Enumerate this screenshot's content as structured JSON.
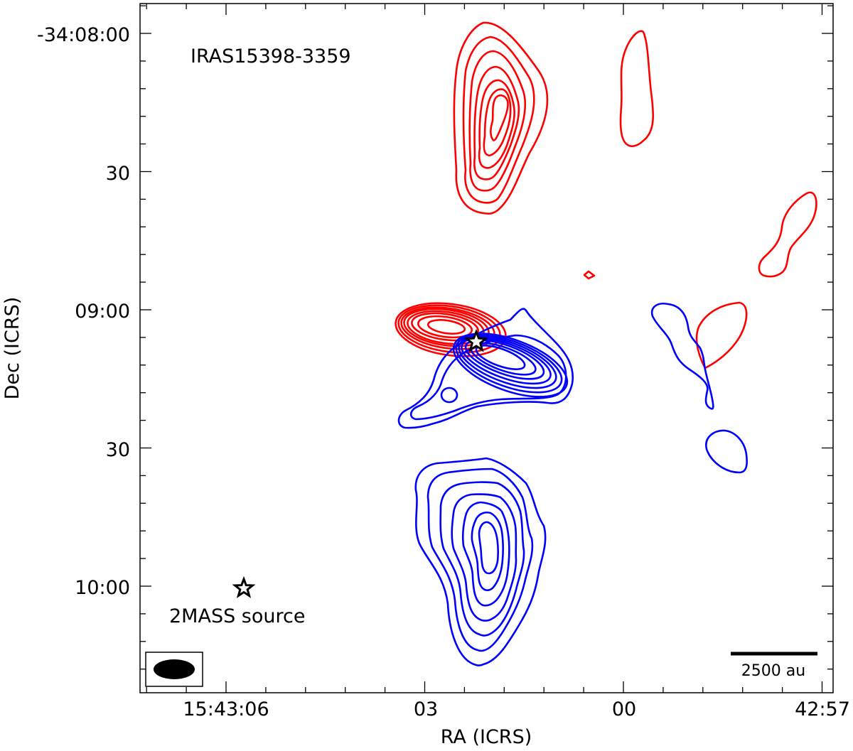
{
  "chart_data": {
    "type": "contour",
    "title": "IRAS15398-3359",
    "xlabel": "RA (ICRS)",
    "ylabel": "Dec (ICRS)",
    "x_ticks": [
      "15:43:06",
      "03",
      "00",
      "42:57"
    ],
    "y_ticks": [
      "-34:08:00",
      "30",
      "09:00",
      "30",
      "10:00"
    ],
    "xlim": [
      "15:43:07.3",
      "15:42:56.9"
    ],
    "ylim": [
      "-34:10:23",
      "-34:07:53"
    ],
    "series": [
      {
        "color": "#ff0000"
      },
      {
        "color": "#0000ff"
      }
    ],
    "markers": [
      {
        "type": "star",
        "ra": "15:43:02.2",
        "dec": "-34:09:06.8"
      },
      {
        "type": "star",
        "ra": "15:43:05.9",
        "dec": "-34:10:00.1",
        "label": "2MASS source"
      }
    ],
    "scale_bar": {
      "label": "2500 au"
    },
    "beam": "filled black ellipse",
    "grid": false
  }
}
